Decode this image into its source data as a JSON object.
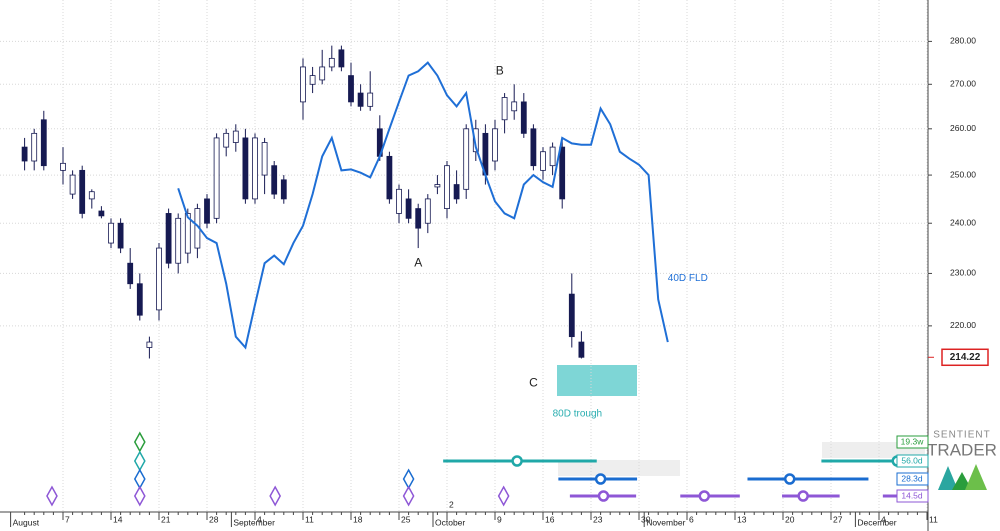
{
  "chart_data": {
    "type": "candlestick",
    "log_scale": true,
    "grid": true,
    "categories": [
      null,
      null,
      null,
      null,
      "7",
      null,
      null,
      null,
      null,
      "14",
      null,
      null,
      null,
      null,
      "21",
      null,
      null,
      null,
      null,
      "28",
      null,
      null,
      null,
      null,
      "4",
      null,
      null,
      null,
      null,
      "11",
      null,
      null,
      null,
      null,
      "18",
      null,
      null,
      null,
      null,
      "25",
      null,
      null,
      null,
      null,
      "2",
      null,
      null,
      null,
      null,
      "9",
      null,
      null,
      null,
      null,
      "16",
      null,
      null,
      null,
      null,
      "23",
      null,
      null,
      null,
      null,
      "30",
      null,
      null,
      null,
      null,
      "6",
      null,
      null,
      null,
      null,
      "13",
      null,
      null,
      null,
      null,
      "20",
      null,
      null,
      null,
      null,
      "27",
      null,
      null,
      null,
      null,
      "4",
      null,
      null,
      null,
      null,
      "11"
    ],
    "months": [
      "August",
      null,
      null,
      null,
      null,
      null,
      null,
      null,
      null,
      null,
      null,
      null,
      null,
      null,
      null,
      null,
      null,
      null,
      null,
      null,
      null,
      null,
      null,
      "September",
      null,
      null,
      null,
      null,
      null,
      null,
      null,
      null,
      null,
      null,
      null,
      null,
      null,
      null,
      null,
      null,
      null,
      null,
      null,
      null,
      "October",
      null,
      null,
      null,
      null,
      null,
      null,
      null,
      null,
      null,
      null,
      null,
      null,
      null,
      null,
      null,
      null,
      null,
      null,
      null,
      null,
      null,
      "November",
      null,
      null,
      null,
      null,
      null,
      null,
      null,
      null,
      null,
      null,
      null,
      null,
      null,
      null,
      null,
      null,
      null,
      null,
      null,
      null,
      null,
      "December",
      null,
      null,
      null,
      null,
      null,
      null
    ],
    "candles": [
      [
        256,
        258,
        251,
        253
      ],
      [
        253,
        260,
        251,
        259
      ],
      [
        262,
        264,
        251,
        252
      ],
      null,
      [
        251,
        256,
        248,
        252.5
      ],
      [
        246,
        251,
        245,
        250
      ],
      [
        251,
        252,
        241,
        242
      ],
      [
        245,
        247,
        243,
        246.5
      ],
      [
        242.5,
        243.5,
        241,
        241.5
      ],
      [
        236,
        241,
        235,
        240
      ],
      [
        240,
        241,
        234,
        235
      ],
      [
        232,
        235,
        227,
        228
      ],
      [
        228,
        230,
        221,
        222
      ],
      [
        216,
        218,
        214,
        217
      ],
      [
        223,
        236,
        221,
        235
      ],
      [
        242,
        243,
        231,
        232
      ],
      [
        232,
        242,
        230,
        241
      ],
      [
        234,
        243,
        232,
        242
      ],
      [
        235,
        244,
        233,
        243
      ],
      [
        245,
        246,
        239,
        240
      ],
      [
        241,
        259,
        240,
        258
      ],
      [
        256,
        260,
        254,
        259
      ],
      [
        257,
        261,
        255,
        259.5
      ],
      [
        258,
        260,
        244,
        245
      ],
      [
        245,
        259,
        244,
        258
      ],
      [
        250,
        258,
        246,
        257
      ],
      [
        252,
        253,
        245,
        246
      ],
      [
        249,
        250,
        244,
        245
      ],
      null,
      [
        266,
        276,
        262,
        274
      ],
      [
        270,
        274,
        268,
        272
      ],
      [
        271,
        278,
        270,
        274
      ],
      [
        274,
        279,
        273,
        276
      ],
      [
        278,
        279,
        273,
        274
      ],
      [
        272,
        275,
        265,
        266
      ],
      [
        268,
        270,
        264,
        265
      ],
      [
        265,
        273,
        264,
        268
      ],
      [
        260,
        263,
        253,
        254
      ],
      [
        254,
        255,
        244,
        245
      ],
      [
        242,
        248,
        240,
        247
      ],
      [
        245,
        247,
        240,
        241
      ],
      [
        243,
        244,
        235,
        239
      ],
      [
        240,
        246,
        238,
        245
      ],
      [
        247.5,
        250,
        246,
        248
      ],
      [
        243,
        253,
        241,
        252
      ],
      [
        248,
        251,
        244,
        245
      ],
      [
        247,
        261,
        245,
        260
      ],
      [
        255,
        262,
        253,
        260
      ],
      [
        259,
        261,
        248,
        250
      ],
      [
        253,
        262,
        251,
        260
      ],
      [
        262,
        268,
        259,
        267
      ],
      [
        264,
        270,
        262,
        266
      ],
      [
        266,
        268,
        258,
        259
      ],
      [
        260,
        261,
        251,
        252
      ],
      [
        251,
        256,
        249,
        255
      ],
      [
        252,
        257,
        250,
        256
      ],
      [
        256,
        258,
        243,
        245
      ],
      [
        226,
        230,
        216,
        218
      ],
      [
        217,
        219,
        214,
        214.22
      ],
      null,
      null,
      null,
      null,
      null,
      null,
      null,
      null,
      null,
      null,
      null,
      null,
      null,
      null,
      null,
      null,
      null,
      null,
      null,
      null,
      null,
      null,
      null,
      null,
      null,
      null,
      null,
      null,
      null,
      null,
      null,
      null,
      null,
      null
    ],
    "up_color": "#ffffff",
    "down_color": "#161a52",
    "fld": {
      "name": "40D FLD",
      "color": "#1f6fd6",
      "values": [
        null,
        null,
        null,
        null,
        null,
        null,
        null,
        null,
        null,
        null,
        null,
        null,
        null,
        null,
        null,
        null,
        247.2,
        241.2,
        239.5,
        237,
        236,
        228,
        218,
        216,
        224,
        232,
        233.5,
        231.8,
        236,
        239.5,
        246,
        254,
        258,
        251,
        251.2,
        250.5,
        249.5,
        254,
        260,
        266,
        272,
        273,
        275,
        272,
        267.5,
        265,
        268,
        256,
        250,
        244.5,
        242,
        241,
        248,
        250,
        248.5,
        247.5,
        258,
        256.8,
        256.5,
        256.5,
        264.5,
        261,
        255,
        253.5,
        252.2,
        250,
        225,
        217,
        null,
        null,
        null,
        null,
        null,
        null,
        null,
        null,
        null,
        null,
        null,
        null,
        null,
        null,
        null,
        null,
        null,
        null,
        null,
        null,
        null,
        null,
        null
      ]
    },
    "last_price": {
      "value": 214.22,
      "label": "214.22"
    },
    "ylim": [
      206.6,
      290.0
    ],
    "yticks": [
      {
        "value": 220,
        "label": "220.00"
      },
      {
        "value": 230,
        "label": "230.00"
      },
      {
        "value": 240,
        "label": "240.00"
      },
      {
        "value": 250,
        "label": "250.00"
      },
      {
        "value": 260,
        "label": "260.00"
      },
      {
        "value": 270,
        "label": "270.00"
      },
      {
        "value": 280,
        "label": "280.00"
      }
    ],
    "annotations": [
      {
        "text": "A",
        "index": 41,
        "price": 232
      },
      {
        "text": "B",
        "index": 49.5,
        "price": 273
      },
      {
        "text": "C",
        "index": 53,
        "price": 209.5
      },
      {
        "text": "40D FLD",
        "index": 67,
        "price": 229,
        "color": "#1f6fd6"
      },
      {
        "text": "80D trough",
        "index": 55,
        "price": 204.2,
        "color": "#2aaeb0"
      }
    ],
    "cycles": [
      {
        "label": "19.3w",
        "color": "#2a9d3c",
        "troughs": [
          12
        ],
        "projections": []
      },
      {
        "label": "56.0d",
        "color": "#20a8a8",
        "troughs": [
          12
        ],
        "projections": [
          [
            43.6,
            51.3,
            59.6
          ],
          [
            83,
            90.9,
            95
          ]
        ]
      },
      {
        "label": "28.3d",
        "color": "#1a6cd0",
        "troughs": [
          12,
          40
        ],
        "projections": [
          [
            55.6,
            60,
            63.8
          ],
          [
            75.3,
            79.7,
            87.9
          ]
        ]
      },
      {
        "label": "14.5d",
        "color": "#8e57d6",
        "troughs": [
          2.85,
          12,
          26.1,
          40,
          49.9
        ],
        "projections": [
          [
            56.8,
            60.3,
            63.7
          ],
          [
            68.3,
            70.8,
            74.5
          ],
          [
            78.9,
            81.1,
            84.9
          ],
          [
            89.4,
            95,
            95
          ]
        ]
      }
    ],
    "logo": [
      "SENTIENT",
      "TRADER"
    ]
  }
}
